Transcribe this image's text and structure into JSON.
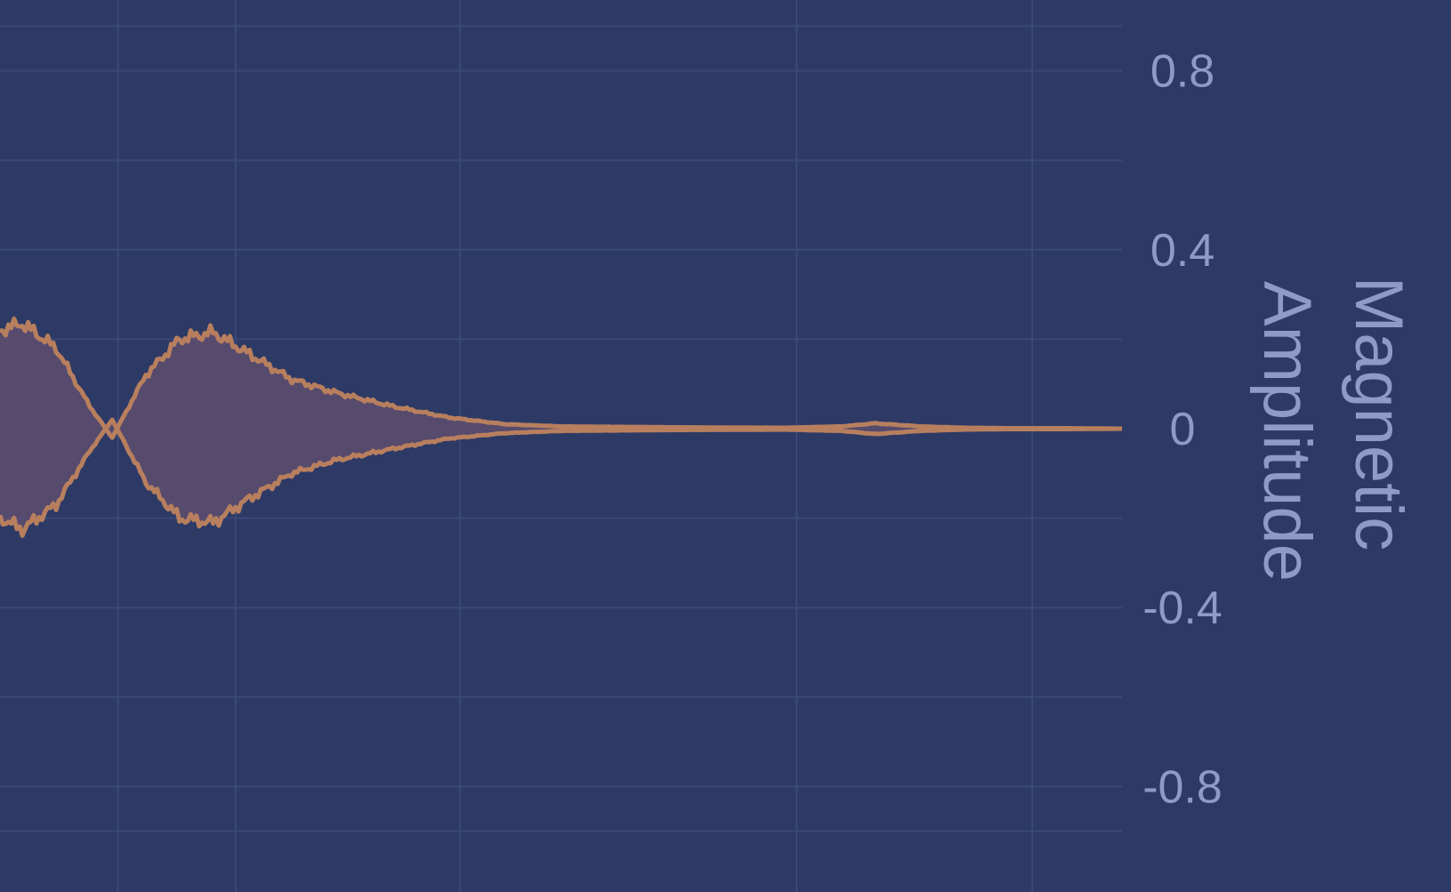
{
  "chart_data": {
    "type": "line",
    "title": "",
    "xlabel": "",
    "ylabel": [
      "Magnetic",
      "Amplitude"
    ],
    "y_axis_side": "right",
    "ylim": [
      -1.0,
      1.0
    ],
    "yticks": [
      0.8,
      0.4,
      0,
      -0.4,
      -0.8
    ],
    "ytick_labels": [
      "0.8",
      "0.4",
      "0",
      "-0.4",
      "-0.8"
    ],
    "grid": true,
    "fill_between_envelopes": true,
    "x": [
      0,
      0.02,
      0.05,
      0.08,
      0.1,
      0.13,
      0.16,
      0.19,
      0.22,
      0.26,
      0.3,
      0.35,
      0.4,
      0.45,
      0.5,
      0.6,
      0.7,
      0.75,
      0.78,
      0.82,
      0.86,
      0.9,
      0.95,
      1.0
    ],
    "series": [
      {
        "values": [
          0.22,
          0.235,
          0.18,
          0.05,
          -0.02,
          0.12,
          0.2,
          0.215,
          0.17,
          0.11,
          0.08,
          0.05,
          0.025,
          0.01,
          0.005,
          0.003,
          0.002,
          0.005,
          0.012,
          0.005,
          0.002,
          0.001,
          0.001,
          0.0
        ],
        "color": "#b87f5e"
      },
      {
        "values": [
          -0.2,
          -0.225,
          -0.17,
          -0.05,
          0.02,
          -0.12,
          -0.2,
          -0.21,
          -0.16,
          -0.1,
          -0.07,
          -0.045,
          -0.022,
          -0.01,
          -0.005,
          -0.003,
          -0.002,
          -0.005,
          -0.012,
          -0.005,
          -0.002,
          -0.001,
          -0.001,
          0.0
        ],
        "color": "#b87f5e"
      }
    ],
    "colors": {
      "background": "#2d3a66",
      "grid": "#3a4878",
      "line": "#b87f5e",
      "fill": "#5e4e6e",
      "text": "#8d9bc6"
    }
  }
}
